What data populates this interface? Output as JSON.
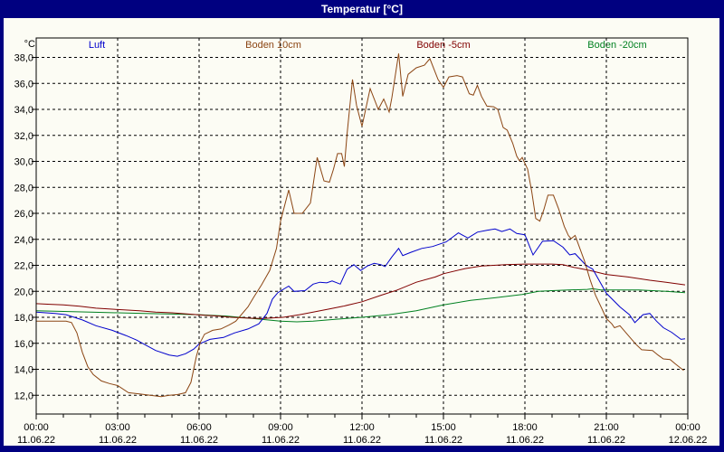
{
  "window": {
    "title": "Temperatur [°C]"
  },
  "colors": {
    "frame": "#000080",
    "titlebar_bg": "#000080",
    "title_text": "#FFFFFF",
    "panel_bg": "#FCFCF4",
    "grid": "#000000",
    "axis": "#000000"
  },
  "chart_data": {
    "type": "line",
    "title": "Temperatur [°C]",
    "grid": "dashed",
    "legend_position": "top",
    "y_axis": {
      "unit": "°C",
      "min": 12,
      "max": 38,
      "tick_step": 2,
      "tick_values": [
        38,
        36,
        34,
        32,
        30,
        28,
        26,
        24,
        22,
        20,
        18,
        16,
        14,
        12
      ],
      "decimal_separator": ","
    },
    "x_axis": {
      "range_hours": [
        0,
        24
      ],
      "minor_tick_every_hours": 1,
      "major_tick_every_hours": 3,
      "ticks": [
        {
          "hour": 0,
          "time": "00:00",
          "date": "11.06.22"
        },
        {
          "hour": 3,
          "time": "03:00",
          "date": "11.06.22"
        },
        {
          "hour": 6,
          "time": "06:00",
          "date": "11.06.22"
        },
        {
          "hour": 9,
          "time": "09:00",
          "date": "11.06.22"
        },
        {
          "hour": 12,
          "time": "12:00",
          "date": "11.06.22"
        },
        {
          "hour": 15,
          "time": "15:00",
          "date": "11.06.22"
        },
        {
          "hour": 18,
          "time": "18:00",
          "date": "11.06.22"
        },
        {
          "hour": 21,
          "time": "21:00",
          "date": "11.06.22"
        },
        {
          "hour": 24,
          "time": "00:00",
          "date": "12.06.22"
        }
      ]
    },
    "series": [
      {
        "name": "Luft",
        "color": "#0000CC",
        "points": [
          [
            0,
            18.4
          ],
          [
            0.7,
            18.3
          ],
          [
            1.1,
            18.2
          ],
          [
            1.7,
            17.8
          ],
          [
            2.2,
            17.35
          ],
          [
            2.8,
            17.0
          ],
          [
            3.3,
            16.6
          ],
          [
            3.7,
            16.25
          ],
          [
            4,
            15.9
          ],
          [
            4.4,
            15.45
          ],
          [
            4.9,
            15.1
          ],
          [
            5.2,
            15.0
          ],
          [
            5.5,
            15.2
          ],
          [
            5.8,
            15.55
          ],
          [
            6,
            15.95
          ],
          [
            6.4,
            16.3
          ],
          [
            6.9,
            16.45
          ],
          [
            7.3,
            16.8
          ],
          [
            7.8,
            17.1
          ],
          [
            8.2,
            17.5
          ],
          [
            8.5,
            18.3
          ],
          [
            8.7,
            19.4
          ],
          [
            8.9,
            19.9
          ],
          [
            9.3,
            20.4
          ],
          [
            9.5,
            20.0
          ],
          [
            9.9,
            20.05
          ],
          [
            10.2,
            20.55
          ],
          [
            10.45,
            20.7
          ],
          [
            10.7,
            20.65
          ],
          [
            10.9,
            20.8
          ],
          [
            11.2,
            20.55
          ],
          [
            11.45,
            21.7
          ],
          [
            11.7,
            22.05
          ],
          [
            11.95,
            21.6
          ],
          [
            12.2,
            21.95
          ],
          [
            12.45,
            22.15
          ],
          [
            12.7,
            22.05
          ],
          [
            12.85,
            21.9
          ],
          [
            13.1,
            22.65
          ],
          [
            13.35,
            23.3
          ],
          [
            13.5,
            22.75
          ],
          [
            13.8,
            23.0
          ],
          [
            14.2,
            23.3
          ],
          [
            14.6,
            23.45
          ],
          [
            15.1,
            23.8
          ],
          [
            15.55,
            24.5
          ],
          [
            15.9,
            24.1
          ],
          [
            16.25,
            24.55
          ],
          [
            16.6,
            24.7
          ],
          [
            16.9,
            24.8
          ],
          [
            17.15,
            24.6
          ],
          [
            17.45,
            24.8
          ],
          [
            17.7,
            24.45
          ],
          [
            18,
            24.35
          ],
          [
            18.3,
            22.8
          ],
          [
            18.65,
            23.85
          ],
          [
            19.05,
            23.9
          ],
          [
            19.4,
            23.4
          ],
          [
            19.65,
            22.8
          ],
          [
            19.85,
            22.9
          ],
          [
            20.25,
            22.0
          ],
          [
            20.5,
            21.7
          ],
          [
            21,
            19.85
          ],
          [
            21.5,
            18.8
          ],
          [
            21.85,
            18.2
          ],
          [
            22.05,
            17.6
          ],
          [
            22.35,
            18.2
          ],
          [
            22.6,
            18.3
          ],
          [
            22.85,
            17.7
          ],
          [
            23.1,
            17.2
          ],
          [
            23.4,
            16.85
          ],
          [
            23.75,
            16.3
          ],
          [
            23.9,
            16.35
          ]
        ]
      },
      {
        "name": "Boden 10cm",
        "color": "#8B4513",
        "points": [
          [
            0,
            17.7
          ],
          [
            0.6,
            17.7
          ],
          [
            1.1,
            17.7
          ],
          [
            1.3,
            17.6
          ],
          [
            1.5,
            16.8
          ],
          [
            1.7,
            15.3
          ],
          [
            1.9,
            14.2
          ],
          [
            2.1,
            13.6
          ],
          [
            2.4,
            13.1
          ],
          [
            2.7,
            12.9
          ],
          [
            3,
            12.75
          ],
          [
            3.4,
            12.2
          ],
          [
            3.8,
            12.1
          ],
          [
            4.2,
            12.0
          ],
          [
            4.6,
            11.9
          ],
          [
            4.9,
            12.0
          ],
          [
            5.2,
            12.05
          ],
          [
            5.5,
            12.2
          ],
          [
            5.7,
            13.0
          ],
          [
            5.9,
            15.0
          ],
          [
            6.05,
            16.1
          ],
          [
            6.2,
            16.7
          ],
          [
            6.5,
            17.0
          ],
          [
            6.8,
            17.1
          ],
          [
            7.1,
            17.4
          ],
          [
            7.35,
            17.7
          ],
          [
            7.8,
            18.8
          ],
          [
            8,
            19.5
          ],
          [
            8.3,
            20.5
          ],
          [
            8.6,
            21.6
          ],
          [
            8.85,
            23.3
          ],
          [
            9,
            25.4
          ],
          [
            9.3,
            27.8
          ],
          [
            9.5,
            26.0
          ],
          [
            9.8,
            26.0
          ],
          [
            10.1,
            26.8
          ],
          [
            10.35,
            30.3
          ],
          [
            10.6,
            28.5
          ],
          [
            10.8,
            28.4
          ],
          [
            10.95,
            29.4
          ],
          [
            11.1,
            30.6
          ],
          [
            11.25,
            30.6
          ],
          [
            11.35,
            29.6
          ],
          [
            11.45,
            32.1
          ],
          [
            11.65,
            36.3
          ],
          [
            11.8,
            34.3
          ],
          [
            12,
            32.7
          ],
          [
            12.3,
            35.6
          ],
          [
            12.6,
            34.0
          ],
          [
            12.8,
            34.8
          ],
          [
            13,
            33.8
          ],
          [
            13.1,
            34.9
          ],
          [
            13.35,
            38.3
          ],
          [
            13.5,
            35.0
          ],
          [
            13.7,
            36.7
          ],
          [
            14,
            37.2
          ],
          [
            14.3,
            37.4
          ],
          [
            14.5,
            37.9
          ],
          [
            14.8,
            36.3
          ],
          [
            15,
            35.7
          ],
          [
            15.2,
            36.5
          ],
          [
            15.5,
            36.6
          ],
          [
            15.7,
            36.5
          ],
          [
            15.95,
            35.2
          ],
          [
            16.1,
            35.1
          ],
          [
            16.25,
            35.85
          ],
          [
            16.4,
            35.0
          ],
          [
            16.6,
            34.25
          ],
          [
            16.85,
            34.2
          ],
          [
            17,
            34.0
          ],
          [
            17.2,
            32.6
          ],
          [
            17.35,
            32.4
          ],
          [
            17.55,
            31.4
          ],
          [
            17.7,
            30.4
          ],
          [
            17.8,
            30.05
          ],
          [
            17.9,
            30.3
          ],
          [
            18.1,
            29.4
          ],
          [
            18.25,
            27.7
          ],
          [
            18.4,
            25.6
          ],
          [
            18.55,
            25.4
          ],
          [
            18.7,
            26.3
          ],
          [
            18.85,
            27.4
          ],
          [
            19.05,
            27.4
          ],
          [
            19.25,
            26.3
          ],
          [
            19.45,
            25.0
          ],
          [
            19.6,
            24.3
          ],
          [
            19.7,
            24.05
          ],
          [
            19.85,
            24.3
          ],
          [
            20.2,
            22.3
          ],
          [
            20.4,
            20.9
          ],
          [
            20.6,
            19.7
          ],
          [
            20.85,
            18.6
          ],
          [
            21,
            17.9
          ],
          [
            21.2,
            17.5
          ],
          [
            21.3,
            17.2
          ],
          [
            21.5,
            17.35
          ],
          [
            21.85,
            16.5
          ],
          [
            22.1,
            15.9
          ],
          [
            22.3,
            15.5
          ],
          [
            22.7,
            15.45
          ],
          [
            22.9,
            15.1
          ],
          [
            23.1,
            14.8
          ],
          [
            23.35,
            14.75
          ],
          [
            23.55,
            14.4
          ],
          [
            23.85,
            13.9
          ]
        ]
      },
      {
        "name": "Boden -5cm",
        "color": "#800000",
        "points": [
          [
            0,
            19.05
          ],
          [
            0.5,
            19.0
          ],
          [
            1,
            18.95
          ],
          [
            1.6,
            18.85
          ],
          [
            2.2,
            18.7
          ],
          [
            3,
            18.6
          ],
          [
            3.8,
            18.5
          ],
          [
            4.4,
            18.4
          ],
          [
            5,
            18.35
          ],
          [
            5.6,
            18.25
          ],
          [
            6.2,
            18.15
          ],
          [
            6.7,
            18.1
          ],
          [
            7.2,
            18.0
          ],
          [
            7.7,
            17.95
          ],
          [
            8.3,
            17.9
          ],
          [
            9.1,
            18.0
          ],
          [
            9.7,
            18.2
          ],
          [
            10.2,
            18.4
          ],
          [
            10.8,
            18.65
          ],
          [
            11.3,
            18.85
          ],
          [
            12,
            19.2
          ],
          [
            12.7,
            19.7
          ],
          [
            13.3,
            20.1
          ],
          [
            14,
            20.7
          ],
          [
            14.7,
            21.1
          ],
          [
            15,
            21.35
          ],
          [
            15.8,
            21.75
          ],
          [
            16.4,
            21.95
          ],
          [
            17.3,
            22.05
          ],
          [
            18,
            22.1
          ],
          [
            19,
            22.1
          ],
          [
            19.4,
            22.05
          ],
          [
            19.8,
            21.85
          ],
          [
            20.4,
            21.6
          ],
          [
            21,
            21.3
          ],
          [
            21.8,
            21.1
          ],
          [
            22.6,
            20.85
          ],
          [
            23.2,
            20.7
          ],
          [
            23.9,
            20.5
          ]
        ]
      },
      {
        "name": "Boden -20cm",
        "color": "#008020",
        "points": [
          [
            0,
            18.5
          ],
          [
            1,
            18.45
          ],
          [
            2,
            18.4
          ],
          [
            3,
            18.35
          ],
          [
            4,
            18.3
          ],
          [
            5,
            18.25
          ],
          [
            6,
            18.2
          ],
          [
            7,
            18.1
          ],
          [
            8,
            17.9
          ],
          [
            9,
            17.7
          ],
          [
            9.6,
            17.65
          ],
          [
            10.2,
            17.7
          ],
          [
            11,
            17.85
          ],
          [
            12,
            18.0
          ],
          [
            13,
            18.2
          ],
          [
            14,
            18.5
          ],
          [
            15,
            18.95
          ],
          [
            16,
            19.3
          ],
          [
            16.9,
            19.5
          ],
          [
            17.9,
            19.75
          ],
          [
            18.5,
            20.0
          ],
          [
            19,
            20.05
          ],
          [
            19.6,
            20.1
          ],
          [
            20.3,
            20.15
          ],
          [
            20.5,
            20.2
          ],
          [
            20.8,
            20.1
          ],
          [
            21.5,
            20.1
          ],
          [
            22.2,
            20.1
          ],
          [
            22.7,
            20.05
          ],
          [
            23.2,
            20.0
          ],
          [
            23.9,
            19.9
          ]
        ]
      }
    ]
  }
}
